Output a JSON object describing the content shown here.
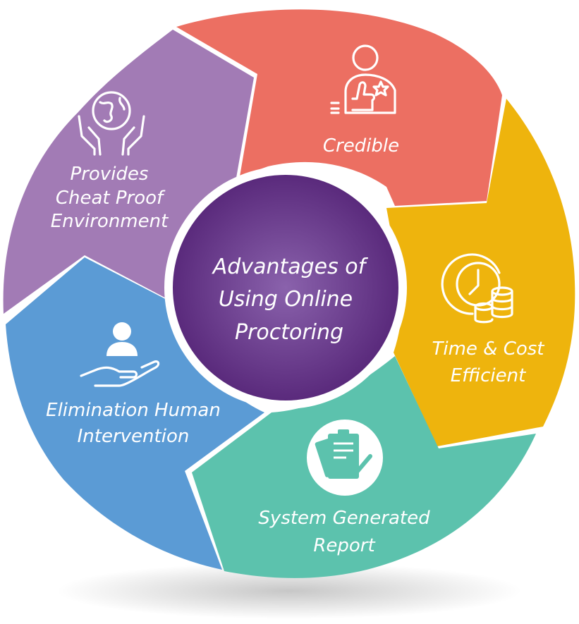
{
  "center": {
    "title_lines": [
      "Advantages of",
      "Using Online",
      "Proctoring"
    ]
  },
  "segments": [
    {
      "id": "credible",
      "lines": [
        "Credible"
      ],
      "color": "#EC6F62",
      "icon": "person-thumbs-up-icon"
    },
    {
      "id": "time-cost",
      "lines": [
        "Time & Cost",
        "Efficient"
      ],
      "color": "#EEB40D",
      "icon": "clock-coins-icon"
    },
    {
      "id": "report",
      "lines": [
        "System Generated",
        "Report"
      ],
      "color": "#5CC2AD",
      "icon": "clipboard-check-icon"
    },
    {
      "id": "human",
      "lines": [
        "Elimination Human",
        "Intervention"
      ],
      "color": "#5B9BD5",
      "icon": "hand-user-icon"
    },
    {
      "id": "cheat-proof",
      "lines": [
        "Provides",
        "Cheat Proof",
        "Environment"
      ],
      "color": "#A27BB5",
      "icon": "globe-hands-icon"
    }
  ],
  "colors": {
    "center_dark": "#5B2C7E",
    "center_light": "#7D52A0",
    "ring_bg": "#ffffff"
  }
}
